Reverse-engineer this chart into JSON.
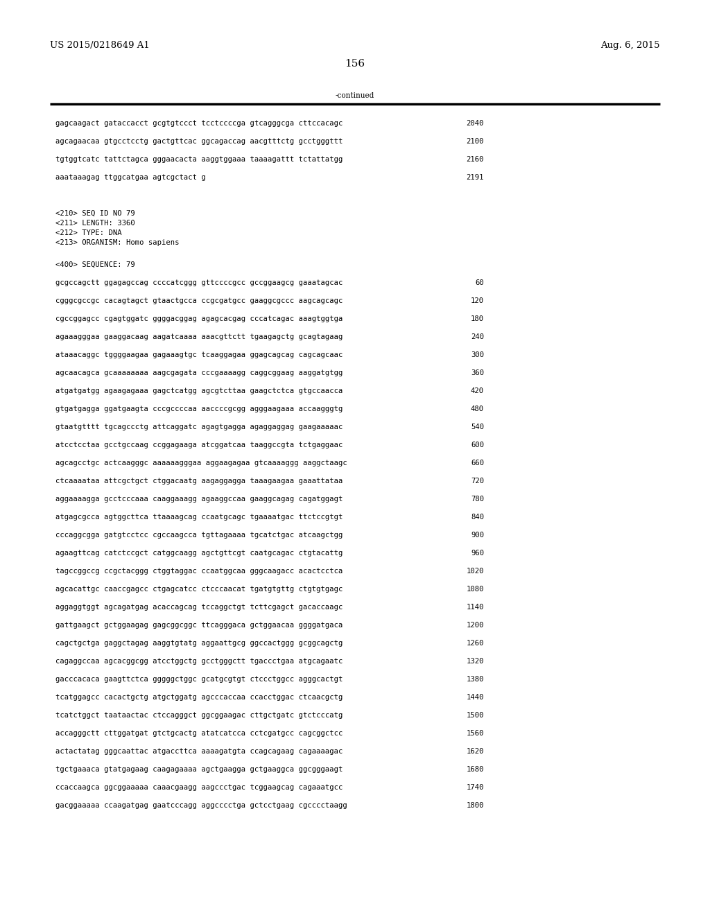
{
  "header_left": "US 2015/0218649 A1",
  "header_right": "Aug. 6, 2015",
  "page_number": "156",
  "continued_label": "-continued",
  "background_color": "#ffffff",
  "text_color": "#000000",
  "font_size_header": 9.5,
  "font_size_page": 11,
  "font_size_body": 8.0,
  "sequence_lines_top": [
    [
      "gagcaagact gataccacct gcgtgtccct tcctccccga gtcagggcga cttccacagc",
      "2040"
    ],
    [
      "agcagaacaa gtgcctcctg gactgttcac ggcagaccag aacgtttctg gcctgggttt",
      "2100"
    ],
    [
      "tgtggtcatc tattctagca gggaacacta aaggtggaaa taaaagattt tctattatgg",
      "2160"
    ],
    [
      "aaataaagag ttggcatgaa agtcgctact g",
      "2191"
    ]
  ],
  "metadata_lines": [
    "<210> SEQ ID NO 79",
    "<211> LENGTH: 3360",
    "<212> TYPE: DNA",
    "<213> ORGANISM: Homo sapiens"
  ],
  "sequence_label": "<400> SEQUENCE: 79",
  "sequence_lines_main": [
    [
      "gcgccagctt ggagagccag ccccatcggg gttccccgcc gccggaagcg gaaatagcac",
      "60"
    ],
    [
      "cgggcgccgc cacagtagct gtaactgcca ccgcgatgcc gaaggcgccc aagcagcagc",
      "120"
    ],
    [
      "cgccggagcc cgagtggatc ggggacggag agagcacgag cccatcagac aaagtggtga",
      "180"
    ],
    [
      "agaaagggaa gaaggacaag aagatcaaaa aaacgttctt tgaagagctg gcagtagaag",
      "240"
    ],
    [
      "ataaacaggc tggggaagaa gagaaagtgc tcaaggagaa ggagcagcag cagcagcaac",
      "300"
    ],
    [
      "agcaacagca gcaaaaaaaa aagcgagata cccgaaaagg caggcggaag aaggatgtgg",
      "360"
    ],
    [
      "atgatgatgg agaagagaaa gagctcatgg agcgtcttaa gaagctctca gtgccaacca",
      "420"
    ],
    [
      "gtgatgagga ggatgaagta cccgccccaa aaccccgcgg agggaagaaa accaagggtg",
      "480"
    ],
    [
      "gtaatgtttt tgcagccctg attcaggatc agagtgagga agaggaggag gaagaaaaac",
      "540"
    ],
    [
      "atcctcctaa gcctgccaag ccggagaaga atcggatcaa taaggccgta tctgaggaac",
      "600"
    ],
    [
      "agcagcctgc actcaagggc aaaaaagggaa aggaagagaa gtcaaaaggg aaggctaagc",
      "660"
    ],
    [
      "ctcaaaataa attcgctgct ctggacaatg aagaggagga taaagaagaa gaaattataa",
      "720"
    ],
    [
      "aggaaaagga gcctcccaaa caaggaaagg agaaggccaa gaaggcagag cagatggagt",
      "780"
    ],
    [
      "atgagcgcca agtggcttca ttaaaagcag ccaatgcagc tgaaaatgac ttctccgtgt",
      "840"
    ],
    [
      "cccaggcgga gatgtcctcc cgccaagcca tgttagaaaa tgcatctgac atcaagctgg",
      "900"
    ],
    [
      "agaagttcag catctccgct catggcaagg agctgttcgt caatgcagac ctgtacattg",
      "960"
    ],
    [
      "tagccggccg ccgctacggg ctggtaggac ccaatggcaa gggcaagacc acactcctca",
      "1020"
    ],
    [
      "agcacattgc caaccgagcc ctgagcatcc ctcccaacat tgatgtgttg ctgtgtgagc",
      "1080"
    ],
    [
      "aggaggtggt agcagatgag acaccagcag tccaggctgt tcttcgagct gacaccaagc",
      "1140"
    ],
    [
      "gattgaagct gctggaagag gagcggcggc ttcagggaca gctggaacaa ggggatgaca",
      "1200"
    ],
    [
      "cagctgctga gaggctagag aaggtgtatg aggaattgcg ggccactggg gcggcagctg",
      "1260"
    ],
    [
      "cagaggccaa agcacggcgg atcctggctg gcctgggctt tgaccctgaa atgcagaatc",
      "1320"
    ],
    [
      "gacccacaca gaagttctca gggggctggc gcatgcgtgt ctccctggcc agggcactgt",
      "1380"
    ],
    [
      "tcatggagcc cacactgctg atgctggatg agcccaccaa ccacctggac ctcaacgctg",
      "1440"
    ],
    [
      "tcatctggct taataactac ctccagggct ggcggaagac cttgctgatc gtctcccatg",
      "1500"
    ],
    [
      "accagggctt cttggatgat gtctgcactg atatcatcca cctcgatgcc cagcggctcc",
      "1560"
    ],
    [
      "actactatag gggcaattac atgaccttca aaaagatgta ccagcagaag cagaaaagac",
      "1620"
    ],
    [
      "tgctgaaaca gtatgagaag caagagaaaa agctgaagga gctgaaggca ggcgggaagt",
      "1680"
    ],
    [
      "ccaccaagca ggcggaaaaa caaacgaagg aagccctgac tcggaagcag cagaaatgcc",
      "1740"
    ],
    [
      "gacggaaaaa ccaagatgag gaatcccagg aggcccctga gctcctgaag cgcccctaagg",
      "1800"
    ]
  ]
}
